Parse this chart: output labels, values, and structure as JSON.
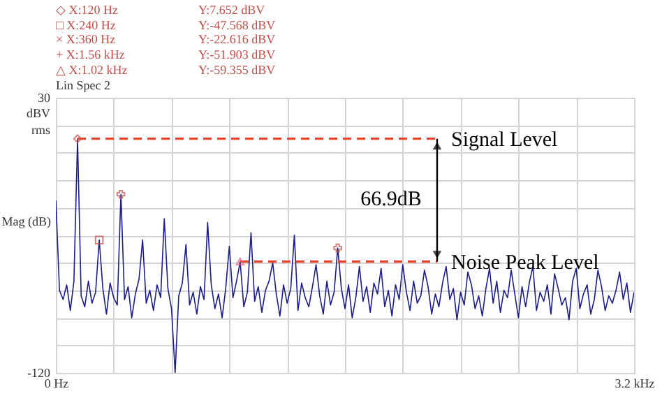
{
  "chart_data": {
    "type": "line",
    "ylabel": "Mag (dB)",
    "annotations": [
      "◇ X:120  Hz",
      "Y:7.652 dBV",
      "□ X:240  Hz",
      "Y:-47.568 dBV",
      "× X:360  Hz",
      "Y:-22.616 dBV",
      "+ X:1.56 kHz",
      "Y:-51.903 dBV",
      "△ X:1.02 kHz",
      "Y:-59.355 dBV",
      "Lin Spec 2",
      "dBV rms",
      "66.9dB"
    ],
    "x": [
      0,
      0.02,
      0.04,
      0.06,
      0.08,
      0.1,
      0.12,
      0.14,
      0.16,
      0.18,
      0.2,
      0.22,
      0.24,
      0.26,
      0.28,
      0.3,
      0.32,
      0.34,
      0.36,
      0.38,
      0.4,
      0.42,
      0.44,
      0.46,
      0.48,
      0.5,
      0.52,
      0.54,
      0.56,
      0.58,
      0.6,
      0.62,
      0.64,
      0.66,
      0.68,
      0.7,
      0.72,
      0.74,
      0.76,
      0.78,
      0.8,
      0.82,
      0.84,
      0.86,
      0.88,
      0.9,
      0.92,
      0.94,
      0.96,
      0.98,
      1,
      1.02,
      1.04,
      1.06,
      1.08,
      1.1,
      1.12,
      1.14,
      1.16,
      1.18,
      1.2,
      1.22,
      1.24,
      1.26,
      1.28,
      1.3,
      1.32,
      1.34,
      1.36,
      1.38,
      1.4,
      1.42,
      1.44,
      1.46,
      1.48,
      1.5,
      1.52,
      1.54,
      1.56,
      1.58,
      1.6,
      1.62,
      1.64,
      1.66,
      1.68,
      1.7,
      1.72,
      1.74,
      1.76,
      1.78,
      1.8,
      1.82,
      1.84,
      1.86,
      1.88,
      1.9,
      1.92,
      1.94,
      1.96,
      1.98,
      2,
      2.02,
      2.04,
      2.06,
      2.08,
      2.1,
      2.12,
      2.14,
      2.16,
      2.18,
      2.2,
      2.22,
      2.24,
      2.26,
      2.28,
      2.3,
      2.32,
      2.34,
      2.36,
      2.38,
      2.4,
      2.42,
      2.44,
      2.46,
      2.48,
      2.5,
      2.52,
      2.54,
      2.56,
      2.58,
      2.6,
      2.62,
      2.64,
      2.66,
      2.68,
      2.7,
      2.72,
      2.74,
      2.76,
      2.78,
      2.8,
      2.82,
      2.84,
      2.86,
      2.88,
      2.9,
      2.92,
      2.94,
      2.96,
      2.98,
      3,
      3.02,
      3.04,
      3.06,
      3.08,
      3.1,
      3.12,
      3.14,
      3.16,
      3.18,
      3.2
    ],
    "series": [
      {
        "color": "#1c1c8a",
        "values": [
          -26,
          -75,
          -80,
          -72,
          -86,
          -70,
          7.652,
          -78,
          -84,
          -70,
          -82,
          -76,
          -47.568,
          -74,
          -88,
          -71,
          -79,
          -83,
          -22.616,
          -80,
          -73,
          -90,
          -77,
          -69,
          -47.5,
          -82,
          -75,
          -86,
          -72,
          -79,
          -36,
          -74,
          -85,
          -120,
          -78,
          -71,
          -50,
          -83,
          -76,
          -88,
          -73,
          -80,
          -38,
          -72,
          -85,
          -77,
          -90,
          -74,
          -51,
          -79,
          -70,
          -59.355,
          -84,
          -76,
          -43.6,
          -81,
          -73,
          -87,
          -75,
          -70,
          -60,
          -77,
          -89,
          -72,
          -82,
          -74,
          -44.8,
          -86,
          -71,
          -79,
          -84,
          -73,
          -61,
          -78,
          -88,
          -70,
          -83,
          -76,
          -51.903,
          -74,
          -85,
          -72,
          -90,
          -79,
          -62,
          -81,
          -73,
          -87,
          -71,
          -77,
          -63,
          -84,
          -75,
          -89,
          -72,
          -80,
          -61,
          -76,
          -86,
          -70,
          -82,
          -78,
          -64,
          -73,
          -88,
          -77,
          -84,
          -71,
          -62,
          -80,
          -74,
          -91,
          -76,
          -83,
          -65,
          -72,
          -85,
          -78,
          -89,
          -74,
          -63,
          -82,
          -70,
          -87,
          -75,
          -79,
          -64,
          -77,
          -90,
          -73,
          -84,
          -71,
          -62,
          -86,
          -76,
          -81,
          -72,
          -88,
          -66,
          -74,
          -83,
          -79,
          -91,
          -70,
          -63,
          -85,
          -77,
          -72,
          -88,
          -80,
          -64,
          -73,
          -86,
          -78,
          -82,
          -75,
          -65,
          -80,
          -71,
          -87,
          -76
        ]
      },
      {
        "type": "line",
        "name": "Signal Level",
        "color": "#e8452a",
        "line_style": "dashed",
        "x": [
          0.12,
          2.11
        ],
        "values": [
          7.652,
          7.652
        ]
      },
      {
        "type": "line",
        "name": "Noise Peak Level",
        "color": "#e8452a",
        "line_style": "dashed",
        "x": [
          1.02,
          2.11
        ],
        "values": [
          -59.355,
          -59.355
        ]
      },
      {
        "type": "scatter",
        "marker": "diamond",
        "color": "#c0504d",
        "x": [
          0.12
        ],
        "values": [
          7.652
        ]
      },
      {
        "type": "scatter",
        "marker": "square",
        "color": "#c0504d",
        "x": [
          0.24
        ],
        "values": [
          -47.568
        ]
      },
      {
        "type": "scatter",
        "marker": "cross",
        "color": "#c0504d",
        "x": [
          0.36
        ],
        "values": [
          -22.616
        ]
      },
      {
        "type": "scatter",
        "marker": "cross",
        "color": "#c0504d",
        "x": [
          1.56
        ],
        "values": [
          -51.903
        ]
      },
      {
        "type": "scatter",
        "marker": "triangle",
        "color": "#e06080",
        "x": [
          1.02
        ],
        "values": [
          -59.355
        ]
      }
    ],
    "xlim": [
      0,
      3.2
    ],
    "ylim": [
      -120,
      30
    ],
    "xticks": [
      {
        "value": 0,
        "label": "0  Hz"
      },
      {
        "value": 0.32,
        "label": null
      },
      {
        "value": 0.64,
        "label": null
      },
      {
        "value": 0.96,
        "label": null
      },
      {
        "value": 1.28,
        "label": null
      },
      {
        "value": 1.6,
        "label": null
      },
      {
        "value": 1.92,
        "label": null
      },
      {
        "value": 2.24,
        "label": null
      },
      {
        "value": 2.56,
        "label": null
      },
      {
        "value": 2.88,
        "label": null
      },
      {
        "value": 3.2,
        "label": "3.2 kHz"
      }
    ],
    "yticks": [
      30,
      {
        "value": 15,
        "label": null
      },
      {
        "value": 0,
        "label": null
      },
      {
        "value": -15,
        "label": null
      },
      {
        "value": -30,
        "label": null
      },
      {
        "value": -45,
        "label": null
      },
      {
        "value": -60,
        "label": null
      },
      {
        "value": -75,
        "label": null
      },
      {
        "value": -90,
        "label": null
      },
      {
        "value": -105,
        "label": null
      },
      -120
    ],
    "grid": true
  }
}
